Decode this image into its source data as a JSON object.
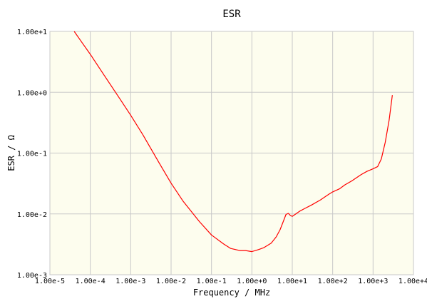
{
  "chart_data": {
    "type": "line",
    "title": "ESR",
    "xlabel": "Frequency / MHz",
    "ylabel": "ESR / Ω",
    "x_scale": "log",
    "y_scale": "log",
    "xlim": [
      1e-05,
      10000
    ],
    "ylim": [
      0.001,
      10
    ],
    "grid": true,
    "x_tick_labels": [
      "1.00e-5",
      "1.00e-4",
      "1.00e-3",
      "1.00e-2",
      "1.00e-1",
      "1.00e+0",
      "1.00e+1",
      "1.00e+2",
      "1.00e+3",
      "1.00e+4"
    ],
    "y_tick_labels": [
      "1.00e-3",
      "1.00e-2",
      "1.00e-1",
      "1.00e+0",
      "1.00e+1"
    ],
    "colors": {
      "plot_background": "#fdfdee",
      "grid": "#c8c8c8",
      "series_line": "#ff0000"
    },
    "series": [
      {
        "x": [
          4e-05,
          6e-05,
          0.0001,
          0.0002,
          0.0005,
          0.001,
          0.002,
          0.005,
          0.01,
          0.02,
          0.05,
          0.1,
          0.2,
          0.3,
          0.5,
          0.7,
          1.0,
          1.5,
          2.0,
          3.0,
          4.0,
          5.0,
          6.0,
          7.0,
          8.0,
          9.0,
          10.0,
          15.0,
          20.0,
          30.0,
          50.0,
          80.0,
          100.0,
          150.0,
          200.0,
          300.0,
          500.0,
          700.0,
          1000.0,
          1300.0,
          1600.0,
          2000.0,
          2500.0,
          3000.0
        ],
        "y": [
          10.0,
          6.8,
          4.2,
          2.1,
          0.84,
          0.42,
          0.2,
          0.07,
          0.032,
          0.016,
          0.0075,
          0.0045,
          0.0032,
          0.0027,
          0.0025,
          0.0025,
          0.0024,
          0.0026,
          0.0028,
          0.0033,
          0.0042,
          0.0055,
          0.0075,
          0.0098,
          0.0102,
          0.0094,
          0.0091,
          0.011,
          0.0122,
          0.014,
          0.017,
          0.021,
          0.023,
          0.026,
          0.03,
          0.035,
          0.044,
          0.05,
          0.055,
          0.06,
          0.08,
          0.15,
          0.35,
          0.9
        ]
      }
    ]
  }
}
